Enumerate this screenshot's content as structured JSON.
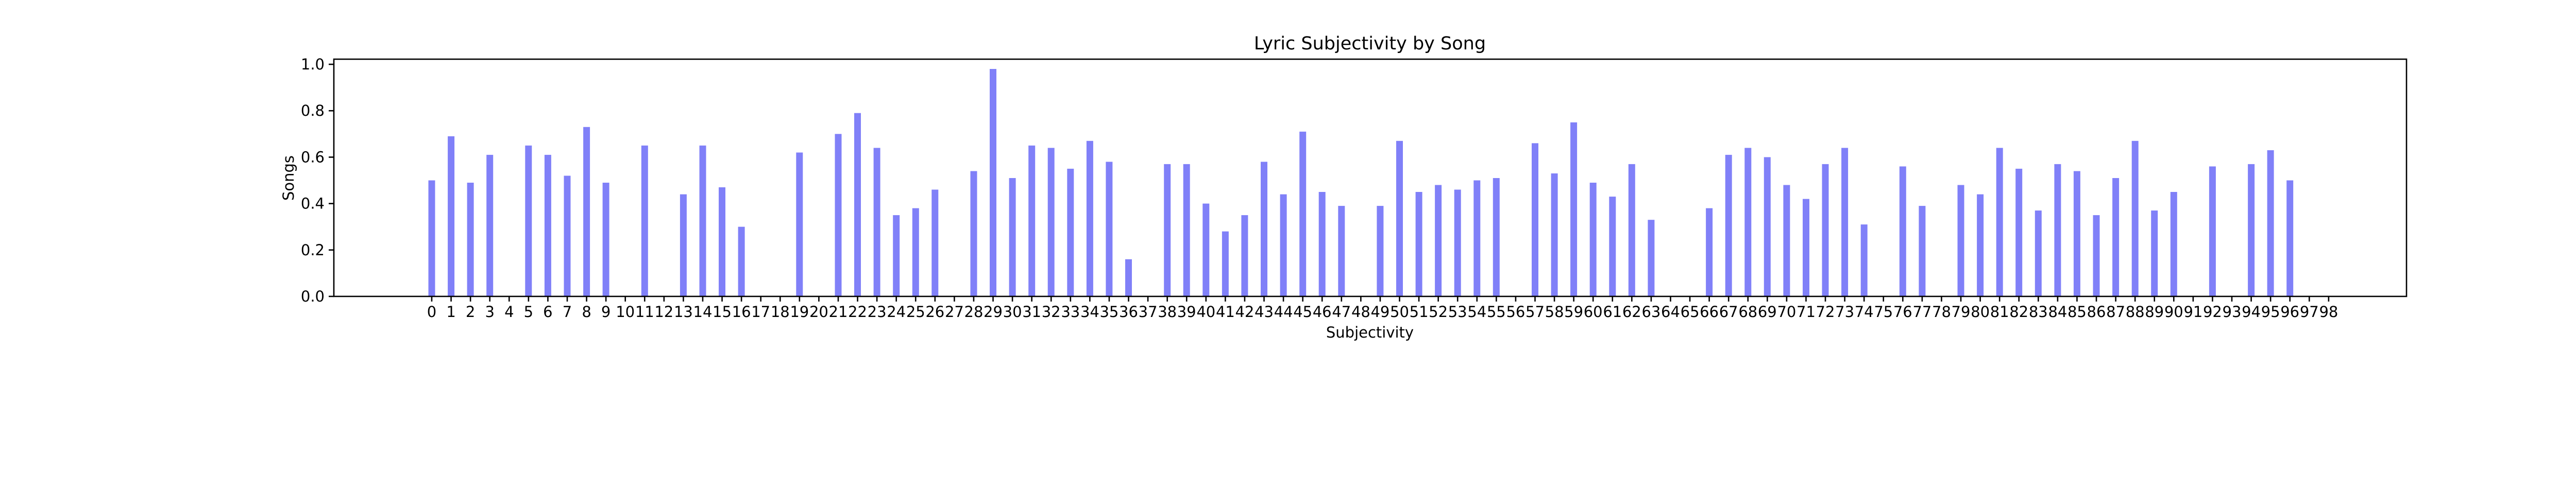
{
  "chart_data": {
    "type": "bar",
    "title": "Lyric Subjectivity by Song",
    "xlabel": "Subjectivity",
    "ylabel": "Songs",
    "ylim": [
      0,
      1.0
    ],
    "yticks": [
      "0.0",
      "0.2",
      "0.4",
      "0.6",
      "0.8",
      "1.0"
    ],
    "categories": [
      "0",
      "1",
      "2",
      "3",
      "4",
      "5",
      "6",
      "7",
      "8",
      "9",
      "10",
      "11",
      "12",
      "13",
      "14",
      "15",
      "16",
      "17",
      "18",
      "19",
      "20",
      "21",
      "22",
      "23",
      "24",
      "25",
      "26",
      "27",
      "28",
      "29",
      "30",
      "31",
      "32",
      "33",
      "34",
      "35",
      "36",
      "37",
      "38",
      "39",
      "40",
      "41",
      "42",
      "43",
      "44",
      "45",
      "46",
      "47",
      "48",
      "49",
      "50",
      "51",
      "52",
      "53",
      "54",
      "55",
      "56",
      "57",
      "58",
      "59",
      "60",
      "61",
      "62",
      "63",
      "64",
      "65",
      "66",
      "67",
      "68",
      "69",
      "70",
      "71",
      "72",
      "73",
      "74",
      "75",
      "76",
      "77",
      "78",
      "79",
      "80",
      "81",
      "82",
      "83",
      "84",
      "85",
      "86",
      "87",
      "88",
      "89",
      "90",
      "91",
      "92",
      "93",
      "94",
      "95",
      "96",
      "97",
      "98"
    ],
    "values": [
      0.5,
      0.69,
      0.49,
      0.61,
      0,
      0.65,
      0.61,
      0.52,
      0.73,
      0.49,
      0,
      0.65,
      0,
      0.44,
      0.65,
      0.47,
      0.3,
      0,
      0,
      0.62,
      0,
      0.7,
      0.79,
      0.64,
      0.35,
      0.38,
      0.46,
      0,
      0.54,
      0.98,
      0.51,
      0.65,
      0.64,
      0.55,
      0.67,
      0.58,
      0.16,
      0,
      0.57,
      0.57,
      0.4,
      0.28,
      0.35,
      0.58,
      0.44,
      0.71,
      0.45,
      0.39,
      0,
      0.39,
      0.67,
      0.45,
      0.48,
      0.46,
      0.5,
      0.51,
      0,
      0.66,
      0.53,
      0.75,
      0.49,
      0.43,
      0.57,
      0.33,
      0,
      0,
      0.38,
      0.61,
      0.64,
      0.6,
      0.48,
      0.42,
      0.57,
      0.64,
      0.31,
      0,
      0.56,
      0.39,
      0,
      0.48,
      0.44,
      0.64,
      0.55,
      0.37,
      0.57,
      0.54,
      0.35,
      0.51,
      0.67,
      0.37,
      0.45,
      0,
      0.56,
      0,
      0.57,
      0.63,
      0.5,
      0,
      0
    ],
    "grid": false,
    "legend": "none",
    "bar_color": "#8080f8"
  }
}
